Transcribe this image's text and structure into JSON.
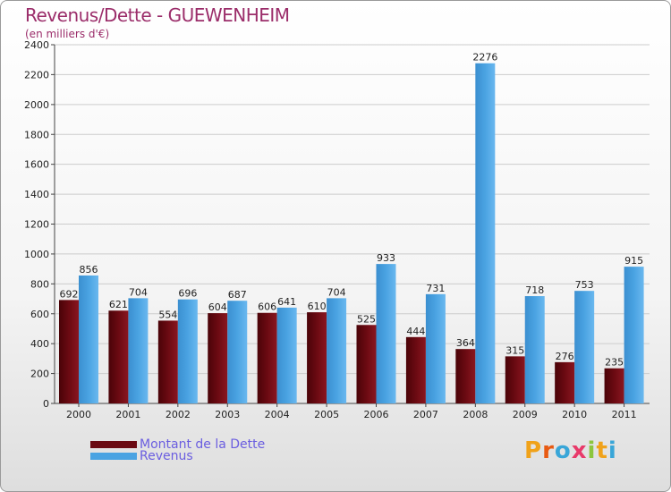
{
  "chart_data": {
    "type": "bar",
    "title": "Revenus/Dette - GUEWENHEIM",
    "subtitle": "(en milliers d'€)",
    "xlabel": "",
    "ylabel": "",
    "ylim": [
      0,
      2400
    ],
    "yticks": [
      0,
      200,
      400,
      600,
      800,
      1000,
      1200,
      1400,
      1600,
      1800,
      2000,
      2200,
      2400
    ],
    "grid": true,
    "categories": [
      "2000",
      "2001",
      "2002",
      "2003",
      "2004",
      "2005",
      "2006",
      "2007",
      "2008",
      "2009",
      "2010",
      "2011"
    ],
    "series": [
      {
        "name": "Montant de la Dette",
        "color": "#6b0a12",
        "values": [
          692,
          621,
          554,
          604,
          606,
          610,
          525,
          444,
          364,
          315,
          276,
          235
        ]
      },
      {
        "name": "Revenus",
        "color": "#4aa3e2",
        "values": [
          856,
          704,
          696,
          687,
          641,
          704,
          933,
          731,
          2276,
          718,
          753,
          915
        ]
      }
    ],
    "legend_position": "bottom-left"
  },
  "colors": {
    "title": "#9b2d6a",
    "legend_text": "#6a5de0",
    "axis": "#444444",
    "grid": "#cccccc"
  },
  "logo": {
    "letters": [
      "P",
      "r",
      "o",
      "x",
      "i",
      "t",
      "i"
    ],
    "colors": [
      "#f0a21a",
      "#e85a12",
      "#39a6d8",
      "#e83a6a",
      "#8cc63e",
      "#f0a21a",
      "#39a6d8"
    ]
  }
}
